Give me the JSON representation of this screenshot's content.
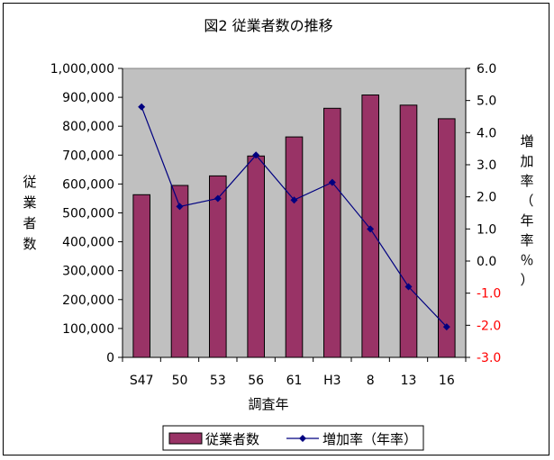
{
  "chart_data": {
    "type": "bar",
    "title": "図2 従業者数の推移",
    "xlabel": "調査年",
    "ylabel": "従業者数",
    "ylabel_right": "増加率（年率％）",
    "categories": [
      "S47",
      "50",
      "53",
      "56",
      "61",
      "H3",
      "8",
      "13",
      "16"
    ],
    "ylim": [
      0,
      1000000
    ],
    "ylim_right": [
      -3.0,
      6.0
    ],
    "y_ticks": [
      "0",
      "100,000",
      "200,000",
      "300,000",
      "400,000",
      "500,000",
      "600,000",
      "700,000",
      "800,000",
      "900,000",
      "1,000,000"
    ],
    "y_ticks_right": [
      "-3.0",
      "-2.0",
      "-1.0",
      "0.0",
      "1.0",
      "2.0",
      "3.0",
      "4.0",
      "5.0",
      "6.0"
    ],
    "series": [
      {
        "name": "従業者数",
        "type": "bar",
        "color": "#993366",
        "values": [
          563000,
          595000,
          628000,
          697000,
          763000,
          862000,
          908000,
          873000,
          826000
        ]
      },
      {
        "name": "増加率（年率）",
        "type": "line",
        "axis": "right",
        "color": "#000080",
        "values": [
          4.8,
          1.7,
          1.95,
          3.3,
          1.9,
          2.45,
          1.0,
          -0.8,
          -2.05
        ]
      }
    ],
    "grid": false,
    "plot_background": "#c0c0c0",
    "legend_position": "bottom"
  }
}
